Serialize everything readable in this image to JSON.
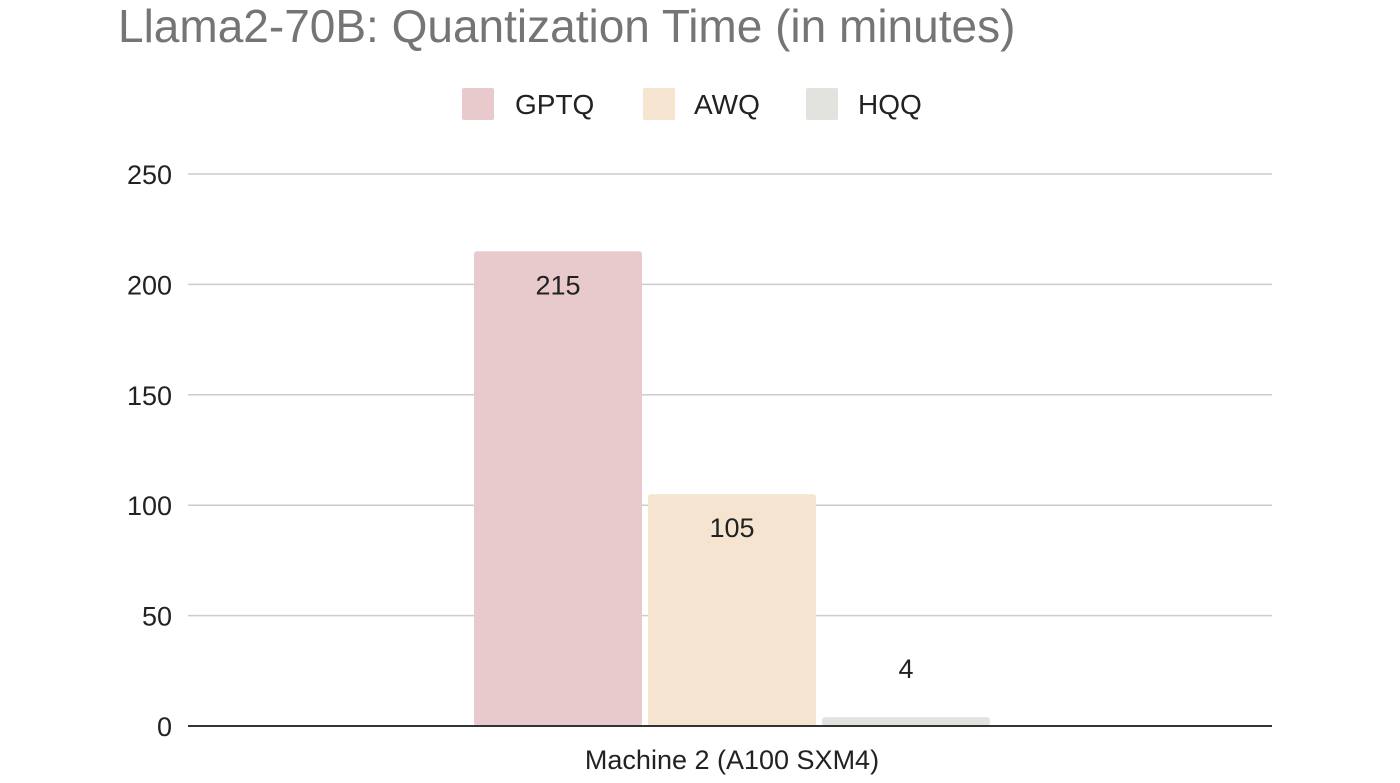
{
  "chart_data": {
    "type": "bar",
    "title": "Llama2-70B: Quantization Time (in minutes)",
    "xlabel": "",
    "ylabel": "",
    "categories": [
      "Machine 2 (A100 SXM4)"
    ],
    "series": [
      {
        "name": "GPTQ",
        "values": [
          215
        ],
        "color": "#e8cacd"
      },
      {
        "name": "AWQ",
        "values": [
          105
        ],
        "color": "#f5e5d0"
      },
      {
        "name": "HQQ",
        "values": [
          4
        ],
        "color": "#e2e3de"
      }
    ],
    "data_labels": [
      "215",
      "105",
      "4"
    ],
    "ylim": [
      0,
      250
    ],
    "yticks": [
      0,
      50,
      100,
      150,
      200,
      250
    ],
    "ytick_labels": [
      "0",
      "50",
      "100",
      "150",
      "200",
      "250"
    ],
    "grid": true,
    "legend": "top-center"
  }
}
